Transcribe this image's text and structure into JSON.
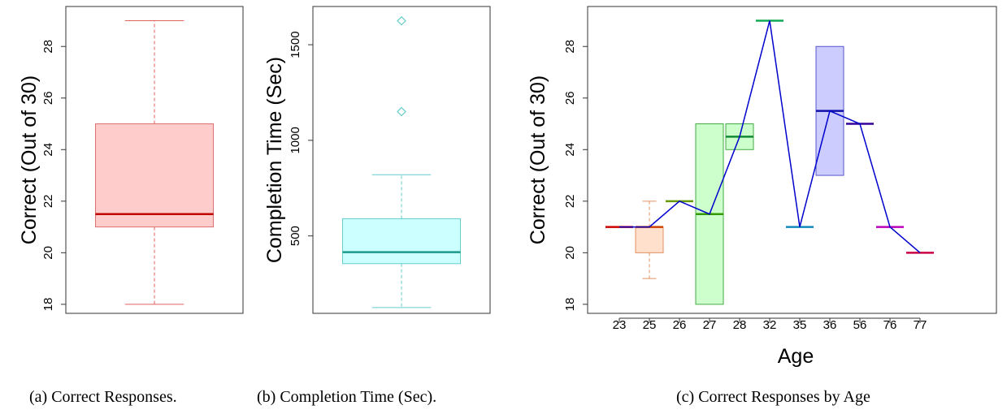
{
  "chart_data": [
    {
      "type": "box",
      "ylabel": "Correct (Out of 30)",
      "caption": "(a) Correct Responses.",
      "ylim": [
        17.65,
        29.55
      ],
      "yticks": [
        18,
        20,
        22,
        24,
        26,
        28
      ],
      "boxes": [
        {
          "min": 18,
          "q1": 21,
          "median": 21.5,
          "q3": 25,
          "max": 29,
          "outliers": []
        }
      ],
      "colors": {
        "fill": "#ffcccc",
        "stroke": "#e07070",
        "median": "#c00000",
        "whisker": "#e06060"
      }
    },
    {
      "type": "box",
      "ylabel": "Completion Time (Sec)",
      "caption": "(b) Completion Time (Sec).",
      "ylim": [
        95,
        1700
      ],
      "yticks": [
        500,
        1000,
        1500
      ],
      "boxes": [
        {
          "min": 125,
          "q1": 355,
          "median": 415,
          "q3": 590,
          "max": 820,
          "outliers": [
            1150,
            1625
          ]
        }
      ],
      "colors": {
        "fill": "#ccffff",
        "stroke": "#66cccc",
        "median": "#1a9a8a",
        "whisker": "#66cccc"
      }
    },
    {
      "type": "box",
      "xlabel": "Age",
      "ylabel": "Correct (Out of 30)",
      "caption": "(c) Correct Responses by Age",
      "ylim": [
        17.65,
        29.55
      ],
      "yticks": [
        18,
        20,
        22,
        24,
        26,
        28
      ],
      "categories": [
        "23",
        "25",
        "26",
        "27",
        "28",
        "32",
        "35",
        "36",
        "56",
        "76",
        "77"
      ],
      "boxes": [
        {
          "min": 21,
          "q1": 21,
          "median": 21,
          "q3": 21,
          "max": 21,
          "fill": "#ffcccc",
          "stroke": "#cc0000",
          "median_color": "#cc0000"
        },
        {
          "min": 19,
          "q1": 20,
          "median": 21,
          "q3": 21,
          "max": 22,
          "fill": "#ffe0cc",
          "stroke": "#e09060",
          "median_color": "#cc4400"
        },
        {
          "min": 22,
          "q1": 22,
          "median": 22,
          "q3": 22,
          "max": 22,
          "fill": "#eeffcc",
          "stroke": "#88aa00",
          "median_color": "#669900"
        },
        {
          "min": 18,
          "q1": 18,
          "median": 21.5,
          "q3": 25,
          "max": 25,
          "fill": "#ccffcc",
          "stroke": "#44aa44",
          "median_color": "#339900"
        },
        {
          "min": 24,
          "q1": 24,
          "median": 24.5,
          "q3": 25,
          "max": 25,
          "fill": "#ccffcc",
          "stroke": "#44aa44",
          "median_color": "#118833"
        },
        {
          "min": 29,
          "q1": 29,
          "median": 29,
          "q3": 29,
          "max": 29,
          "fill": "#ccffee",
          "stroke": "#33aa77",
          "median_color": "#11aa55"
        },
        {
          "min": 21,
          "q1": 21,
          "median": 21,
          "q3": 21,
          "max": 21,
          "fill": "#cceeff",
          "stroke": "#3399cc",
          "median_color": "#1188bb"
        },
        {
          "min": 23,
          "q1": 23,
          "median": 25.5,
          "q3": 28,
          "max": 28,
          "fill": "#ccccff",
          "stroke": "#5555cc",
          "median_color": "#1111aa"
        },
        {
          "min": 25,
          "q1": 25,
          "median": 25,
          "q3": 25,
          "max": 25,
          "fill": "#ddccff",
          "stroke": "#5522cc",
          "median_color": "#330099"
        },
        {
          "min": 21,
          "q1": 21,
          "median": 21,
          "q3": 21,
          "max": 21,
          "fill": "#ffccff",
          "stroke": "#cc22cc",
          "median_color": "#bb00bb"
        },
        {
          "min": 20,
          "q1": 20,
          "median": 20,
          "q3": 20,
          "max": 20,
          "fill": "#ffccdd",
          "stroke": "#cc2266",
          "median_color": "#cc0044"
        }
      ],
      "trend_line": {
        "values": [
          21,
          21,
          22,
          21.5,
          24.5,
          29,
          21,
          25.5,
          25,
          21,
          20
        ],
        "color": "#0000cc"
      }
    }
  ]
}
